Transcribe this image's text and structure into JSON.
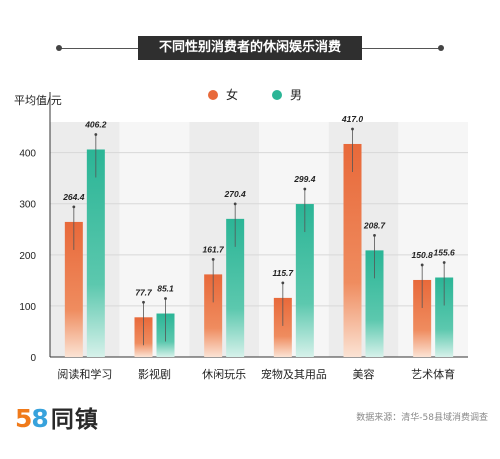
{
  "chart_data": {
    "type": "bar",
    "title": "不同性别消费者的休闲娱乐消费",
    "ylabel": "平均值/元",
    "ylim": [
      0,
      440
    ],
    "yticks": [
      0,
      100,
      200,
      300,
      400
    ],
    "categories": [
      "阅读和学习",
      "影视剧",
      "休闲玩乐",
      "宠物及其用品",
      "美容",
      "艺术体育"
    ],
    "series": [
      {
        "name": "女",
        "color": "#e8693a",
        "values": [
          264.4,
          77.7,
          161.7,
          115.7,
          417.0,
          150.8
        ],
        "labels": [
          "264.4",
          "77.7",
          "161.7",
          "115.7",
          "417.0",
          "150.8"
        ]
      },
      {
        "name": "男",
        "color": "#2bb596",
        "values": [
          406.2,
          85.1,
          270.4,
          299.4,
          208.7,
          155.6
        ],
        "labels": [
          "406.2",
          "85.1",
          "270.4",
          "299.4",
          "208.7",
          "155.6"
        ]
      }
    ],
    "legend": "top"
  },
  "brand": {
    "n5": "5",
    "n8": "8",
    "name": "同镇"
  },
  "source": "数据来源：清华-58县域消费调查"
}
